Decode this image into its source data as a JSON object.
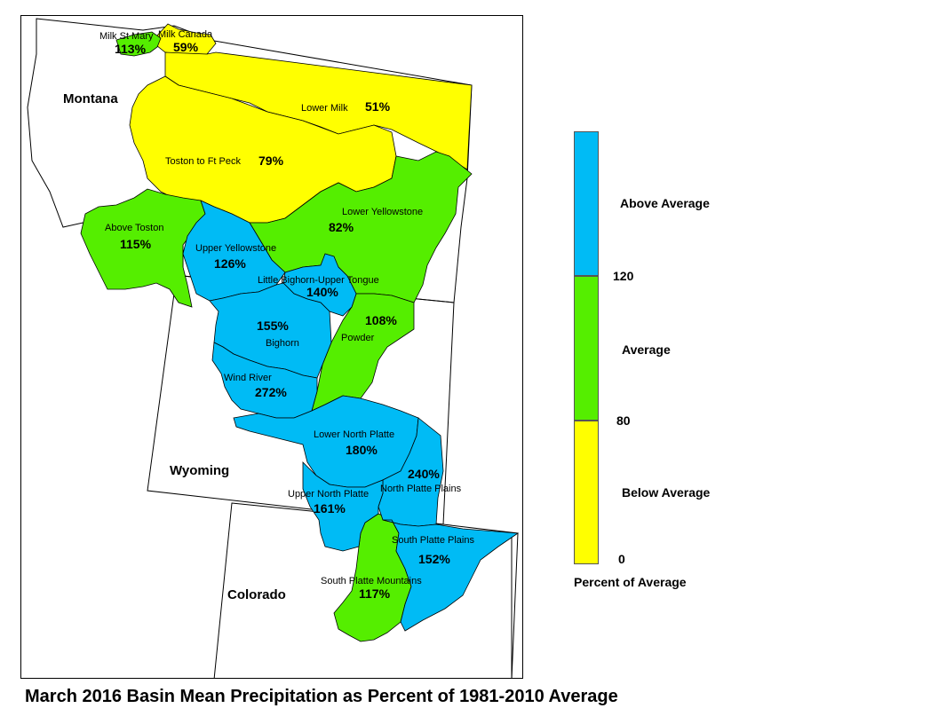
{
  "colors": {
    "below": "#ffff00",
    "average": "#55ee00",
    "above": "#00bbf5",
    "outline": "#000000"
  },
  "states": {
    "montana": "Montana",
    "wyoming": "Wyoming",
    "colorado": "Colorado"
  },
  "basins": [
    {
      "id": "milk-st-mary",
      "name": "Milk St Mary",
      "pct": "113%",
      "cls": "average"
    },
    {
      "id": "milk-canada",
      "name": "Milk Canada",
      "pct": "59%",
      "cls": "below"
    },
    {
      "id": "lower-milk",
      "name": "Lower Milk",
      "pct": "51%",
      "cls": "below"
    },
    {
      "id": "toston-ft-peck",
      "name": "Toston to Ft Peck",
      "pct": "79%",
      "cls": "below"
    },
    {
      "id": "above-toston",
      "name": "Above Toston",
      "pct": "115%",
      "cls": "average"
    },
    {
      "id": "lower-yellowstone",
      "name": "Lower Yellowstone",
      "pct": "82%",
      "cls": "average"
    },
    {
      "id": "upper-yellowstone",
      "name": "Upper Yellowstone",
      "pct": "126%",
      "cls": "above"
    },
    {
      "id": "little-bighorn-upper-tongue",
      "name": "Little Bighorn-Upper Tongue",
      "pct": "140%",
      "cls": "above"
    },
    {
      "id": "powder",
      "name": "Powder",
      "pct": "108%",
      "cls": "average"
    },
    {
      "id": "bighorn",
      "name": "Bighorn",
      "pct": "155%",
      "cls": "above"
    },
    {
      "id": "wind-river",
      "name": "Wind River",
      "pct": "272%",
      "cls": "above"
    },
    {
      "id": "lower-north-platte",
      "name": "Lower North Platte",
      "pct": "180%",
      "cls": "above"
    },
    {
      "id": "north-platte-plains",
      "name": "North Platte Plains",
      "pct": "240%",
      "cls": "above"
    },
    {
      "id": "upper-north-platte",
      "name": "Upper North Platte",
      "pct": "161%",
      "cls": "above"
    },
    {
      "id": "south-platte-plains",
      "name": "South Platte Plains",
      "pct": "152%",
      "cls": "above"
    },
    {
      "id": "south-platte-mountains",
      "name": "South Platte Mountains",
      "pct": "117%",
      "cls": "average"
    }
  ],
  "legend": {
    "title": "Percent of Average",
    "above_label": "Above Average",
    "average_label": "Average",
    "below_label": "Below Average",
    "tick_120": "120",
    "tick_80": "80",
    "tick_0": "0"
  },
  "footer": {
    "title": "March 2016 Basin Mean Precipitation as Percent of 1981-2010 Average"
  }
}
